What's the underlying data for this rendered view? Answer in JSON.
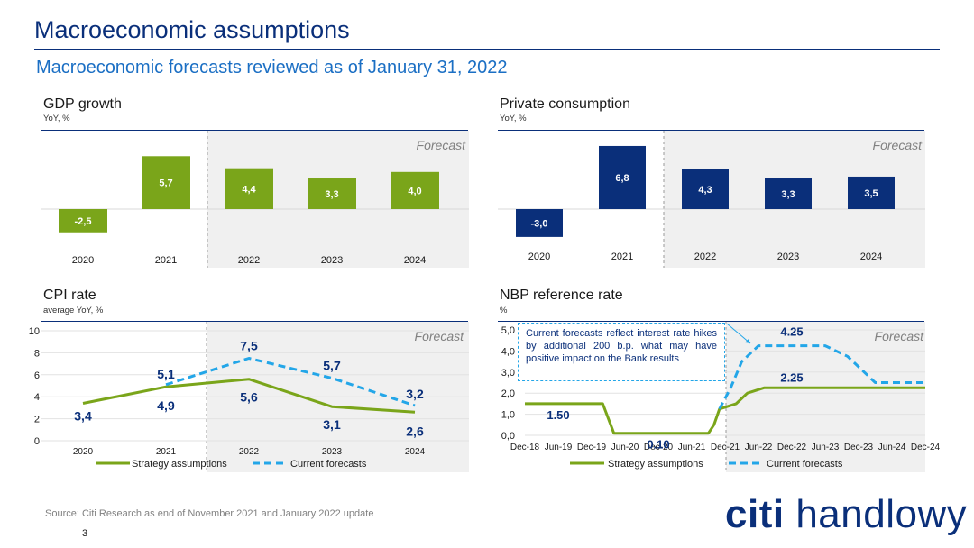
{
  "header": {
    "title": "Macroeconomic assumptions",
    "subtitle": "Macroeconomic forecasts reviewed as of January 31, 2022"
  },
  "footer": {
    "source": "Source: Citi Research as end of November 2021 and January 2022 update",
    "page_number": "3",
    "logo_text_bold": "citi",
    "logo_text": "handlowy"
  },
  "colors": {
    "navy": "#0a2f7a",
    "green": "#7aa51a",
    "light_blue": "#23a6e8",
    "forecast_bg": "#f0f0f0"
  },
  "panels": {
    "gdp": {
      "title": "GDP growth",
      "unit": "YoY, %",
      "forecast_label": "Forecast"
    },
    "consumption": {
      "title": "Private consumption",
      "unit": "YoY, %",
      "forecast_label": "Forecast"
    },
    "cpi": {
      "title": "CPI rate",
      "unit": "average YoY, %",
      "forecast_label": "Forecast"
    },
    "nbp": {
      "title": "NBP reference rate",
      "unit": "%",
      "forecast_label": "Forecast",
      "annotation": "Current forecasts reflect interest rate hikes by additional 200 b.p. what may have positive impact on the Bank results"
    }
  },
  "chart_data": [
    {
      "type": "bar",
      "title": "GDP growth",
      "categories": [
        "2020",
        "2021",
        "2022",
        "2023",
        "2024"
      ],
      "values": [
        -2.5,
        5.7,
        4.4,
        3.3,
        4.0
      ],
      "labels": [
        "-2,5",
        "5,7",
        "4,4",
        "3,3",
        "4,0"
      ],
      "forecast_from": "2022",
      "color": "#7aa51a"
    },
    {
      "type": "bar",
      "title": "Private consumption",
      "categories": [
        "2020",
        "2021",
        "2022",
        "2023",
        "2024"
      ],
      "values": [
        -3.0,
        6.8,
        4.3,
        3.3,
        3.5
      ],
      "labels": [
        "-3,0",
        "6,8",
        "4,3",
        "3,3",
        "3,5"
      ],
      "forecast_from": "2022",
      "color": "#0a2f7a"
    },
    {
      "type": "line",
      "title": "CPI rate",
      "categories": [
        "2020",
        "2021",
        "2022",
        "2023",
        "2024"
      ],
      "ylim": [
        0,
        10
      ],
      "yticks": [
        "0",
        "2",
        "4",
        "6",
        "8",
        "10"
      ],
      "series": [
        {
          "name": "Strategy assumptions",
          "values": [
            3.4,
            4.9,
            5.6,
            3.1,
            2.6
          ],
          "labels": [
            "3,4",
            "4,9",
            "5,6",
            "3,1",
            "2,6"
          ],
          "color": "#7aa51a"
        },
        {
          "name": "Current forecasts",
          "values": [
            null,
            5.1,
            7.5,
            5.7,
            3.2
          ],
          "labels": [
            "",
            "5,1",
            "7,5",
            "5,7",
            "3,2"
          ],
          "color": "#23a6e8"
        }
      ]
    },
    {
      "type": "line",
      "title": "NBP reference rate",
      "x_ticks": [
        "Dec-18",
        "Jun-19",
        "Dec-19",
        "Jun-20",
        "Dec-20",
        "Jun-21",
        "Dec-21",
        "Jun-22",
        "Dec-22",
        "Jun-23",
        "Dec-23",
        "Jun-24",
        "Dec-24"
      ],
      "ylim": [
        0,
        5
      ],
      "yticks": [
        "0,0",
        "1,0",
        "2,0",
        "3,0",
        "4,0",
        "5,0"
      ],
      "series": [
        {
          "name": "Strategy assumptions",
          "color": "#7aa51a",
          "points": [
            [
              "2018-12",
              1.5
            ],
            [
              "2020-02",
              1.5
            ],
            [
              "2020-04",
              0.1
            ],
            [
              "2021-09",
              0.1
            ],
            [
              "2021-10",
              0.5
            ],
            [
              "2021-11",
              1.25
            ],
            [
              "2022-02",
              1.5
            ],
            [
              "2022-04",
              2.0
            ],
            [
              "2022-07",
              2.25
            ],
            [
              "2024-12",
              2.25
            ]
          ]
        },
        {
          "name": "Current forecasts",
          "color": "#23a6e8",
          "points": [
            [
              "2021-11",
              1.25
            ],
            [
              "2022-01",
              2.25
            ],
            [
              "2022-03",
              3.5
            ],
            [
              "2022-06",
              4.25
            ],
            [
              "2023-06",
              4.25
            ],
            [
              "2023-10",
              3.75
            ],
            [
              "2024-01",
              3.0
            ],
            [
              "2024-03",
              2.5
            ],
            [
              "2024-12",
              2.5
            ]
          ]
        }
      ],
      "data_labels": [
        {
          "text": "1.50",
          "x": "2019-06",
          "y": 1.5
        },
        {
          "text": "0.10",
          "x": "2020-12",
          "y": 0.1
        },
        {
          "text": "4.25",
          "x": "2022-12",
          "y": 4.25
        },
        {
          "text": "2.25",
          "x": "2022-12",
          "y": 2.25
        }
      ]
    }
  ]
}
